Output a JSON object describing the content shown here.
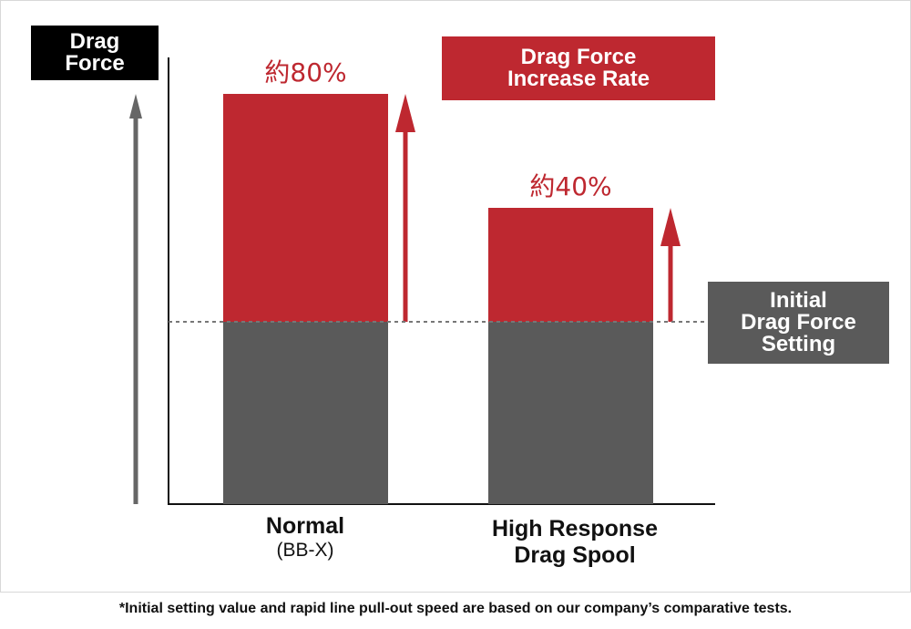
{
  "chart_data": {
    "type": "bar",
    "stacked": true,
    "categories": [
      "Normal (BB-X)",
      "High Response Drag Spool"
    ],
    "category_labels": [
      {
        "main": "Normal",
        "sub": "(BB-X)"
      },
      {
        "main": "High Response",
        "sub": "Drag Spool"
      }
    ],
    "series": [
      {
        "name": "Initial Drag Force Setting",
        "values": [
          100,
          100
        ],
        "color": "#5a5a5a"
      },
      {
        "name": "Drag Force Increase Rate",
        "values": [
          80,
          40
        ],
        "color": "#be2830"
      }
    ],
    "data_labels": [
      "約80%",
      "約40%"
    ],
    "ylabel": "Drag Force",
    "ylabel_lines": [
      "Drag",
      "Force"
    ],
    "legend": [
      {
        "lines": [
          "Drag Force",
          "Increase Rate"
        ],
        "color": "#be2830",
        "placement": "top-right"
      },
      {
        "lines": [
          "Initial",
          "Drag Force",
          "Setting"
        ],
        "color": "#5a5a5a",
        "placement": "right"
      }
    ],
    "grid": false
  },
  "footnote": "*Initial setting value and rapid line pull-out speed are based on our company’s comparative tests."
}
